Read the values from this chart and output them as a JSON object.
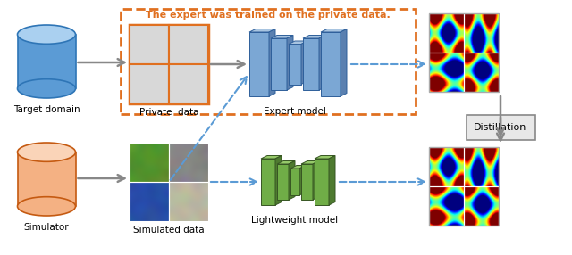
{
  "top_label": "Target domain",
  "bottom_label": "Simulator",
  "private_label": "Private  data",
  "expert_label": "Expert model",
  "simulated_label": "Simulated data",
  "lightweight_label": "Lightweight model",
  "distillation_label": "Distillation",
  "annotation_text": "The expert was trained on the private data.",
  "blue_cyl_color": "#5b9bd5",
  "blue_cyl_top": "#aad0f0",
  "blue_cyl_edge": "#2e75b6",
  "orange_cyl_color": "#f4b183",
  "orange_cyl_top": "#fad4b8",
  "orange_cyl_edge": "#c55a11",
  "private_fill": "#f4b183",
  "private_edge": "#e07020",
  "cell_fill": "#d8d8d8",
  "dashed_box_edge": "#e07020",
  "expert_front": "#7ba7d4",
  "expert_top": "#a8c4e0",
  "expert_right": "#5a80b0",
  "expert_edge": "#2e5f9a",
  "lw_front": "#70ad47",
  "lw_top": "#96c96a",
  "lw_right": "#4e7a30",
  "lw_edge": "#375623",
  "distill_fill": "#e8e8e8",
  "distill_edge": "#888888",
  "arrow_gray": "#888888",
  "arrow_blue": "#5b9bd5",
  "annot_color": "#e07020",
  "bg": "#ffffff"
}
